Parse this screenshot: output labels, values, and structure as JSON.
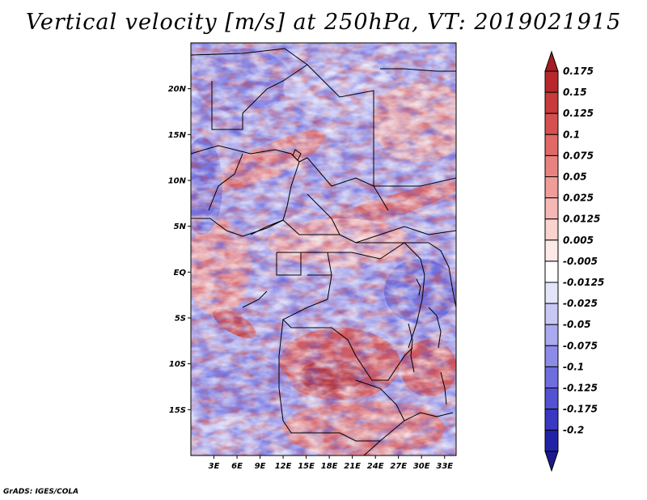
{
  "title": "Vertical velocity [m/s] at 250hPa, VT: 2019021915",
  "credit": "GrADS: IGES/COLA",
  "map": {
    "lon_range": [
      0,
      34.5
    ],
    "lat_range": [
      -20,
      25
    ],
    "lat_labels": [
      {
        "value": 20,
        "label": "20N"
      },
      {
        "value": 15,
        "label": "15N"
      },
      {
        "value": 10,
        "label": "10N"
      },
      {
        "value": 5,
        "label": "5N"
      },
      {
        "value": 0,
        "label": "EQ"
      },
      {
        "value": -5,
        "label": "5S"
      },
      {
        "value": -10,
        "label": "10S"
      },
      {
        "value": -15,
        "label": "15S"
      }
    ],
    "lon_labels": [
      {
        "value": 3,
        "label": "3E"
      },
      {
        "value": 6,
        "label": "6E"
      },
      {
        "value": 9,
        "label": "9E"
      },
      {
        "value": 12,
        "label": "12E"
      },
      {
        "value": 15,
        "label": "15E"
      },
      {
        "value": 18,
        "label": "18E"
      },
      {
        "value": 21,
        "label": "21E"
      },
      {
        "value": 24,
        "label": "24E"
      },
      {
        "value": 27,
        "label": "27E"
      },
      {
        "value": 30,
        "label": "30E"
      },
      {
        "value": 33,
        "label": "33E"
      }
    ]
  },
  "colorbar": {
    "levels": [
      {
        "label": "0.175",
        "color": "#b8272b"
      },
      {
        "label": "0.15",
        "color": "#c83a3c"
      },
      {
        "label": "0.125",
        "color": "#d6504f"
      },
      {
        "label": "0.1",
        "color": "#e06866"
      },
      {
        "label": "0.075",
        "color": "#e8827e"
      },
      {
        "label": "0.05",
        "color": "#f09c98"
      },
      {
        "label": "0.025",
        "color": "#f6b8b4"
      },
      {
        "label": "0.0125",
        "color": "#fad2ce"
      },
      {
        "label": "0.005",
        "color": "#fde9e6"
      },
      {
        "label": "-0.005",
        "color": "#ffffff"
      },
      {
        "label": "-0.0125",
        "color": "#e4e4fb"
      },
      {
        "label": "-0.025",
        "color": "#c8c8f6"
      },
      {
        "label": "-0.05",
        "color": "#aaaaf0"
      },
      {
        "label": "-0.075",
        "color": "#8c8ce8"
      },
      {
        "label": "-0.1",
        "color": "#6e6ede"
      },
      {
        "label": "-0.125",
        "color": "#5252d2"
      },
      {
        "label": "-0.175",
        "color": "#3838c2"
      },
      {
        "label": "-0.2",
        "color": "#2222a8"
      }
    ],
    "top_color": "#a51d22",
    "bottom_color": "#1a1a8c"
  }
}
